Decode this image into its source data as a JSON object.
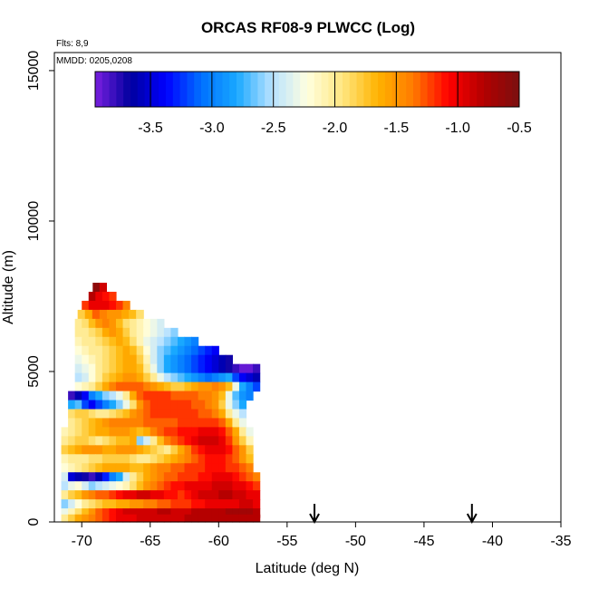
{
  "chart_data": {
    "type": "heatmap",
    "title": "ORCAS RF08-9 PLWCC (Log)",
    "annotations": [
      "Flts: 8,9",
      "MMDD: 0205,0208"
    ],
    "xlabel": "Latitude (deg N)",
    "ylabel": "Altitude (m)",
    "xlim": [
      -72,
      -35
    ],
    "ylim": [
      0,
      15600
    ],
    "x_ticks": [
      "-70",
      "-65",
      "-60",
      "-55",
      "-50",
      "-45",
      "-40",
      "-35"
    ],
    "y_ticks": [
      "0",
      "5000",
      "10000",
      "15000"
    ],
    "colorbar": {
      "range": [
        -3.95,
        -0.5
      ],
      "ticks": [
        "-3.5",
        "-3.0",
        "-2.5",
        "-2.0",
        "-1.5",
        "-1.0",
        "-0.5"
      ],
      "colors": [
        "#7a1fe0",
        "#00009e",
        "#0000ff",
        "#0070ff",
        "#19a8ff",
        "#b8e2ff",
        "#ffffe0",
        "#ffe680",
        "#ffb300",
        "#ff7a00",
        "#ff0000",
        "#b20000",
        "#7a1010"
      ]
    },
    "arrows_lat": [
      -53,
      -41.5
    ],
    "rows": [
      {
        "alt": 7800,
        "x0": -69.2,
        "x1": -68.2,
        "v": [
          -0.6,
          -0.9
        ]
      },
      {
        "alt": 7500,
        "x0": -69.5,
        "x1": -67.5,
        "v": [
          -0.8,
          -1.0,
          -1.1,
          -1.2
        ]
      },
      {
        "alt": 7200,
        "x0": -70.0,
        "x1": -66.5,
        "v": [
          -1.2,
          -1.0,
          -1.0,
          -1.0,
          -1.1,
          -1.2,
          -1.4
        ]
      },
      {
        "alt": 6900,
        "x0": -70.3,
        "x1": -65.5,
        "v": [
          -1.8,
          -1.6,
          -1.3,
          -1.4,
          -1.5,
          -1.5,
          -1.6,
          -1.7,
          -1.9
        ]
      },
      {
        "alt": 6600,
        "x0": -70.5,
        "x1": -64.0,
        "v": [
          -2.0,
          -1.9,
          -1.7,
          -1.5,
          -1.4,
          -1.5,
          -1.7,
          -1.9,
          -2.0,
          -2.1,
          -2.2,
          -2.3,
          -2.4
        ]
      },
      {
        "alt": 6300,
        "x0": -70.5,
        "x1": -63.0,
        "v": [
          -2.0,
          -2.0,
          -1.9,
          -1.8,
          -1.6,
          -1.5,
          -1.6,
          -1.8,
          -2.0,
          -2.1,
          -2.2,
          -2.3,
          -2.4,
          -2.5,
          -2.6
        ]
      },
      {
        "alt": 6000,
        "x0": -70.5,
        "x1": -61.5,
        "v": [
          -2.1,
          -2.0,
          -2.0,
          -1.9,
          -1.8,
          -1.7,
          -1.6,
          -1.7,
          -1.9,
          -2.1,
          -2.3,
          -2.4,
          -2.5,
          -2.6,
          -2.7,
          -2.8,
          -2.9,
          -3.0
        ]
      },
      {
        "alt": 5700,
        "x0": -70.5,
        "x1": -60.0,
        "v": [
          -2.2,
          -2.1,
          -2.0,
          -2.0,
          -1.9,
          -1.8,
          -1.7,
          -1.6,
          -1.7,
          -1.9,
          -2.2,
          -2.4,
          -2.6,
          -2.7,
          -2.8,
          -2.9,
          -3.0,
          -3.1,
          -3.2,
          -3.3,
          -3.4
        ]
      },
      {
        "alt": 5400,
        "x0": -70.5,
        "x1": -59.0,
        "v": [
          -2.3,
          -2.2,
          -2.1,
          -2.0,
          -1.9,
          -1.8,
          -1.7,
          -1.6,
          -1.6,
          -1.8,
          -2.1,
          -2.4,
          -2.6,
          -2.8,
          -2.9,
          -3.0,
          -3.1,
          -3.2,
          -3.3,
          -3.4,
          -3.5,
          -3.6,
          -3.7
        ]
      },
      {
        "alt": 5100,
        "x0": -70.5,
        "x1": -57.0,
        "v": [
          -2.4,
          -2.3,
          -2.2,
          -2.0,
          -1.9,
          -1.8,
          -1.7,
          -1.6,
          -1.6,
          -1.7,
          -2.0,
          -2.3,
          -2.6,
          -2.8,
          -2.9,
          -3.0,
          -3.1,
          -3.2,
          -3.3,
          -3.4,
          -3.5,
          -3.6,
          -3.7,
          -3.8,
          -3.9,
          -3.9,
          -3.8
        ]
      },
      {
        "alt": 4800,
        "x0": -70.5,
        "x1": -57.0,
        "v": [
          -2.5,
          -2.4,
          -2.2,
          -2.0,
          -1.8,
          -1.7,
          -1.6,
          -1.5,
          -1.5,
          -1.6,
          -1.8,
          -2.0,
          -2.3,
          -2.5,
          -2.6,
          -2.7,
          -2.8,
          -2.9,
          -3.0,
          -3.1,
          -3.0,
          -2.9,
          -2.8,
          -3.2,
          -3.4,
          -3.5,
          -3.6
        ]
      },
      {
        "alt": 4500,
        "x0": -70.5,
        "x1": -57.0,
        "v": [
          -2.2,
          -2.1,
          -2.0,
          -1.8,
          -1.6,
          -1.4,
          -1.3,
          -1.3,
          -1.3,
          -1.3,
          -1.4,
          -1.5,
          -1.6,
          -1.7,
          -1.8,
          -1.8,
          -1.7,
          -1.6,
          -1.5,
          -1.5,
          -1.4,
          -1.5,
          -1.7,
          -2.3,
          -2.8,
          -3.0,
          -3.2
        ]
      },
      {
        "alt": 4200,
        "x0": -71.0,
        "x1": -57.5,
        "v": [
          -3.8,
          -3.6,
          -3.4,
          -3.0,
          -2.8,
          -2.6,
          -2.5,
          -2.3,
          -2.0,
          -1.6,
          -1.3,
          -1.2,
          -1.2,
          -1.2,
          -1.2,
          -1.3,
          -1.3,
          -1.3,
          -1.3,
          -1.4,
          -1.4,
          -1.5,
          -1.7,
          -2.3,
          -2.7,
          -2.9,
          -3.0
        ]
      },
      {
        "alt": 3900,
        "x0": -71.0,
        "x1": -58.0,
        "v": [
          -2.8,
          -2.7,
          -3.2,
          -3.4,
          -3.2,
          -3.0,
          -2.8,
          -2.6,
          -2.3,
          -1.9,
          -1.5,
          -1.3,
          -1.2,
          -1.2,
          -1.2,
          -1.2,
          -1.2,
          -1.2,
          -1.3,
          -1.3,
          -1.4,
          -1.5,
          -1.8,
          -2.3,
          -2.6,
          -2.8
        ]
      },
      {
        "alt": 3600,
        "x0": -71.0,
        "x1": -58.0,
        "v": [
          -1.9,
          -1.8,
          -1.8,
          -1.9,
          -2.0,
          -2.0,
          -1.9,
          -1.8,
          -1.7,
          -1.5,
          -1.4,
          -1.3,
          -1.2,
          -1.2,
          -1.2,
          -1.2,
          -1.2,
          -1.2,
          -1.2,
          -1.3,
          -1.3,
          -1.4,
          -1.6,
          -2.0,
          -2.3,
          -2.5
        ]
      },
      {
        "alt": 3300,
        "x0": -71.0,
        "x1": -58.0,
        "v": [
          -2.0,
          -1.9,
          -1.8,
          -1.7,
          -1.6,
          -1.5,
          -1.4,
          -1.4,
          -1.4,
          -1.4,
          -1.4,
          -1.3,
          -1.3,
          -1.3,
          -1.3,
          -1.3,
          -1.2,
          -1.2,
          -1.2,
          -1.2,
          -1.2,
          -1.2,
          -1.3,
          -1.6,
          -2.0,
          -2.3
        ]
      },
      {
        "alt": 3000,
        "x0": -71.5,
        "x1": -57.5,
        "v": [
          -2.1,
          -2.0,
          -1.9,
          -1.8,
          -1.7,
          -1.6,
          -1.6,
          -1.5,
          -1.5,
          -1.5,
          -1.6,
          -1.7,
          -1.6,
          -1.4,
          -1.3,
          -1.2,
          -1.2,
          -1.1,
          -1.1,
          -1.1,
          -1.0,
          -1.0,
          -1.0,
          -1.1,
          -1.3,
          -1.6,
          -2.0,
          -2.3
        ]
      },
      {
        "alt": 2700,
        "x0": -71.5,
        "x1": -57.5,
        "v": [
          -2.0,
          -1.9,
          -1.8,
          -1.8,
          -1.9,
          -2.0,
          -1.9,
          -1.8,
          -1.7,
          -1.7,
          -1.6,
          -2.6,
          -2.4,
          -2.0,
          -1.7,
          -1.4,
          -1.3,
          -1.2,
          -1.1,
          -1.0,
          -0.9,
          -0.9,
          -0.9,
          -1.0,
          -1.2,
          -1.5,
          -1.8,
          -2.1
        ]
      },
      {
        "alt": 2400,
        "x0": -71.5,
        "x1": -57.5,
        "v": [
          -1.8,
          -1.7,
          -1.6,
          -1.5,
          -1.5,
          -1.5,
          -1.6,
          -1.6,
          -1.5,
          -1.5,
          -1.5,
          -1.6,
          -1.7,
          -1.8,
          -1.9,
          -2.0,
          -1.8,
          -1.6,
          -1.4,
          -1.2,
          -1.1,
          -1.0,
          -1.0,
          -1.0,
          -1.1,
          -1.3,
          -1.5,
          -1.8
        ]
      },
      {
        "alt": 2100,
        "x0": -71.5,
        "x1": -57.5,
        "v": [
          -2.1,
          -2.0,
          -2.0,
          -2.0,
          -1.9,
          -1.9,
          -1.8,
          -1.8,
          -1.8,
          -1.8,
          -1.9,
          -2.0,
          -2.0,
          -1.9,
          -1.8,
          -1.7,
          -1.6,
          -1.5,
          -1.4,
          -1.3,
          -1.2,
          -1.1,
          -1.1,
          -1.1,
          -1.2,
          -1.3,
          -1.5,
          -1.7
        ]
      },
      {
        "alt": 1800,
        "x0": -71.5,
        "x1": -57.5,
        "v": [
          -2.2,
          -2.1,
          -2.0,
          -1.9,
          -1.8,
          -1.7,
          -1.6,
          -1.6,
          -1.6,
          -1.6,
          -1.7,
          -1.7,
          -1.6,
          -1.5,
          -1.4,
          -1.4,
          -1.3,
          -1.3,
          -1.2,
          -1.2,
          -1.2,
          -1.1,
          -1.1,
          -1.1,
          -1.2,
          -1.2,
          -1.3,
          -1.4
        ]
      },
      {
        "alt": 1500,
        "x0": -71.5,
        "x1": -57.0,
        "v": [
          -2.4,
          -3.5,
          -3.6,
          -3.7,
          -3.8,
          -3.6,
          -3.3,
          -3.0,
          -2.8,
          -2.4,
          -2.0,
          -1.8,
          -1.6,
          -1.5,
          -1.4,
          -1.3,
          -1.3,
          -1.2,
          -1.2,
          -1.2,
          -1.1,
          -1.1,
          -1.0,
          -1.0,
          -1.0,
          -1.1,
          -1.2,
          -1.3,
          -1.4
        ]
      },
      {
        "alt": 1200,
        "x0": -71.5,
        "x1": -57.0,
        "v": [
          -2.5,
          -2.3,
          -2.2,
          -2.4,
          -2.6,
          -2.5,
          -2.4,
          -2.3,
          -2.2,
          -2.1,
          -1.9,
          -1.7,
          -1.5,
          -1.4,
          -1.3,
          -1.2,
          -1.1,
          -1.1,
          -1.0,
          -1.0,
          -1.0,
          -1.0,
          -0.9,
          -0.9,
          -0.9,
          -1.0,
          -1.0,
          -1.1,
          -1.2
        ]
      },
      {
        "alt": 900,
        "x0": -71.5,
        "x1": -57.0,
        "v": [
          -2.0,
          -1.8,
          -1.7,
          -1.5,
          -1.4,
          -1.3,
          -1.3,
          -1.2,
          -1.1,
          -1.0,
          -1.0,
          -0.9,
          -0.9,
          -1.0,
          -1.0,
          -1.1,
          -1.1,
          -1.2,
          -1.1,
          -1.0,
          -0.9,
          -0.9,
          -0.9,
          -0.8,
          -0.8,
          -0.9,
          -0.9,
          -1.0,
          -1.0
        ]
      },
      {
        "alt": 600,
        "x0": -71.5,
        "x1": -57.0,
        "v": [
          -2.6,
          -2.4,
          -2.2,
          -2.0,
          -1.9,
          -1.8,
          -1.7,
          -1.7,
          -1.6,
          -1.6,
          -1.5,
          -1.5,
          -1.4,
          -1.4,
          -1.3,
          -1.3,
          -1.2,
          -1.2,
          -1.2,
          -1.1,
          -1.1,
          -1.0,
          -1.0,
          -1.0,
          -1.0,
          -1.0,
          -0.9,
          -0.9,
          -1.0
        ]
      },
      {
        "alt": 300,
        "x0": -71.5,
        "x1": -57.0,
        "v": [
          -2.3,
          -2.1,
          -1.9,
          -1.7,
          -1.5,
          -1.3,
          -1.2,
          -1.1,
          -1.0,
          -0.9,
          -0.9,
          -0.9,
          -0.9,
          -0.9,
          -0.8,
          -0.8,
          -0.9,
          -0.9,
          -0.9,
          -0.8,
          -0.8,
          -0.8,
          -0.8,
          -0.8,
          -0.7,
          -0.7,
          -0.7,
          -0.7,
          -0.8
        ]
      },
      {
        "alt": 100,
        "x0": -71.5,
        "x1": -57.0,
        "v": [
          -2.0,
          -1.8,
          -1.6,
          -1.5,
          -1.4,
          -1.3,
          -1.2,
          -1.1,
          -1.0,
          -1.0,
          -1.0,
          -0.9,
          -0.9,
          -0.9,
          -0.9,
          -0.9,
          -0.9,
          -0.9,
          -0.8,
          -0.8,
          -0.8,
          -0.8,
          -0.8,
          -0.8,
          -0.8,
          -0.8,
          -0.8,
          -0.8,
          -0.8
        ]
      }
    ]
  }
}
